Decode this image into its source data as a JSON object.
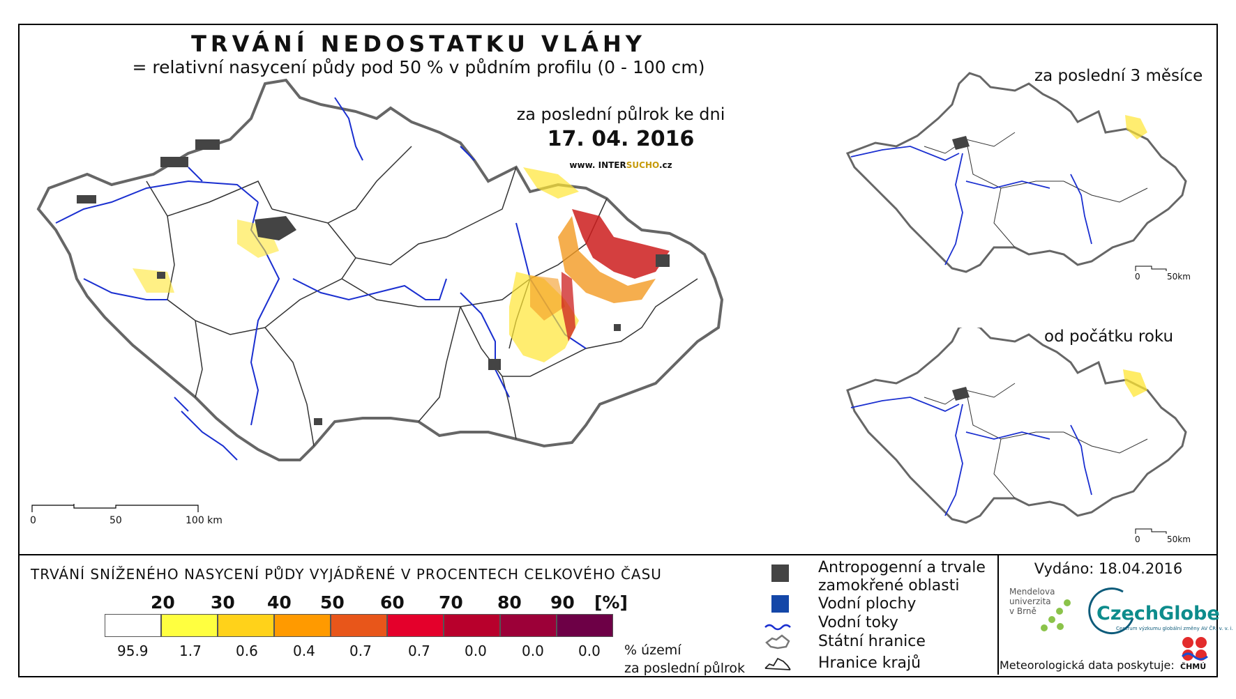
{
  "title": "TRVÁNÍ NEDOSTATKU VLÁHY",
  "subtitle": "= relativní nasycení půdy pod 50 % v půdním profilu (0 - 100 cm)",
  "main_map": {
    "period_label": "za poslední půlrok ke dni",
    "date": "17. 04. 2016",
    "website_prefix": "www. INTER",
    "website_highlight": "SUCHO",
    "website_suffix": ".cz",
    "scale_labels": [
      "0",
      "50",
      "100 km"
    ]
  },
  "inset_top": {
    "title": "za poslední 3 měsíce",
    "scale_labels": [
      "0",
      "50km"
    ]
  },
  "inset_bottom": {
    "title": "od počátku roku",
    "scale_labels": [
      "0",
      "50km"
    ]
  },
  "legend": {
    "title": "TRVÁNÍ SNÍŽENÉHO NASYCENÍ PŮDY VYJÁDŘENÉ V PROCENTECH CELKOVÉHO ČASU",
    "thresholds": [
      "20",
      "30",
      "40",
      "50",
      "60",
      "70",
      "80",
      "90",
      "[%]"
    ],
    "colors": [
      "#ffffff",
      "#ffff40",
      "#ffd21a",
      "#ff9a00",
      "#e8561a",
      "#e4002b",
      "#b8002c",
      "#9c0038",
      "#6d0046"
    ],
    "percentages": [
      "95.9",
      "1.7",
      "0.6",
      "0.4",
      "0.7",
      "0.7",
      "0.0",
      "0.0",
      "0.0"
    ],
    "pct_unit_line1": "% území",
    "pct_unit_line2": "za poslední půlrok"
  },
  "symbols": {
    "anthropogenic_line1": "Antropogenní a trvale",
    "anthropogenic_line2": "zamokřené oblasti",
    "water_bodies": "Vodní plochy",
    "rivers": "Vodní toky",
    "state_border": "Státní hranice",
    "region_border": "Hranice krajů"
  },
  "footer": {
    "issued": "Vydáno: 18.04.2016",
    "mendel_lines": [
      "Mendelova",
      "univerzita",
      "v Brně"
    ],
    "czechglobe": "CzechGlobe",
    "czechglobe_sub": "Centrum výzkumu globální změny AV ČR, v. v. i.",
    "meteo": "Meteorologická data poskytuje:",
    "chmu": "ČHMÚ"
  }
}
